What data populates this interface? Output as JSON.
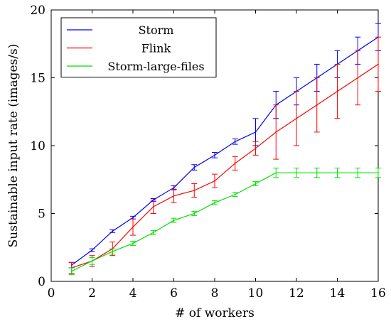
{
  "chart_data": {
    "type": "line",
    "xlabel": "# of workers",
    "ylabel": "Sustainable input rate (images/s)",
    "xlim": [
      0,
      16
    ],
    "ylim": [
      0,
      20
    ],
    "xticks": [
      0,
      2,
      4,
      6,
      8,
      10,
      12,
      14,
      16
    ],
    "yticks": [
      0,
      5,
      10,
      15,
      20
    ],
    "grid": false,
    "legend_position": "top-left",
    "series": [
      {
        "name": "Storm",
        "color": "#0000ff",
        "x": [
          1,
          2,
          3,
          4,
          5,
          6,
          7,
          8,
          9,
          10,
          11,
          12,
          13,
          14,
          15,
          16
        ],
        "y": [
          1.2,
          2.3,
          3.7,
          4.7,
          6.0,
          6.9,
          8.4,
          9.3,
          10.3,
          11.0,
          13.0,
          14.0,
          15.0,
          16.0,
          17.0,
          18.0
        ],
        "err": [
          0.2,
          0.1,
          0.1,
          0.1,
          0.1,
          0.15,
          0.2,
          0.2,
          0.2,
          1.0,
          1.0,
          1.0,
          1.0,
          1.0,
          1.0,
          1.0
        ]
      },
      {
        "name": "Flink",
        "color": "#ff0000",
        "x": [
          1,
          2,
          3,
          4,
          5,
          6,
          7,
          8,
          9,
          10,
          11,
          12,
          13,
          14,
          15,
          16
        ],
        "y": [
          1.0,
          1.5,
          2.4,
          4.0,
          5.5,
          6.3,
          6.7,
          7.4,
          8.7,
          9.8,
          11.0,
          12.0,
          13.0,
          14.0,
          15.0,
          16.0
        ],
        "err": [
          0.4,
          0.4,
          0.5,
          0.6,
          0.5,
          0.5,
          0.5,
          0.5,
          0.5,
          0.5,
          2.0,
          2.0,
          2.0,
          2.0,
          2.0,
          2.0
        ]
      },
      {
        "name": "Storm-large-files",
        "color": "#00e000",
        "x": [
          1,
          2,
          3,
          4,
          5,
          6,
          7,
          8,
          9,
          10,
          11,
          12,
          13,
          14,
          15,
          16
        ],
        "y": [
          0.75,
          1.5,
          2.2,
          2.8,
          3.6,
          4.5,
          5.0,
          5.8,
          6.4,
          7.2,
          8.0,
          8.0,
          8.0,
          8.0,
          8.0,
          8.0
        ],
        "err": [
          0.25,
          0.25,
          0.2,
          0.15,
          0.15,
          0.15,
          0.15,
          0.15,
          0.15,
          0.15,
          0.35,
          0.35,
          0.35,
          0.35,
          0.35,
          0.35
        ]
      }
    ]
  }
}
